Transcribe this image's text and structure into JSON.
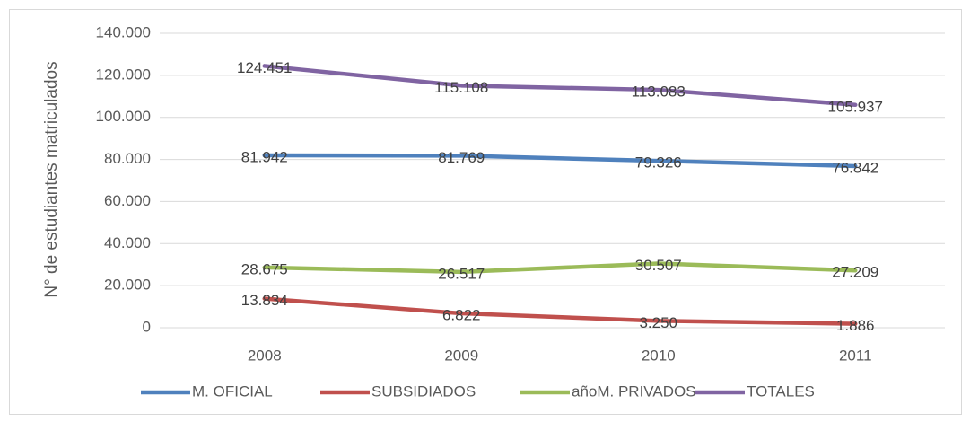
{
  "chart_data": {
    "type": "line",
    "y_label": "N° de estudiantes  matriculados",
    "categories": [
      "2008",
      "2009",
      "2010",
      "2011"
    ],
    "series": [
      {
        "name": "M. OFICIAL",
        "color": "#4f81bd",
        "values": [
          81942,
          81769,
          79326,
          76842
        ],
        "value_labels": [
          "81.942",
          "81.769",
          "79.326",
          "76.842"
        ]
      },
      {
        "name": "SUBSIDIADOS",
        "color": "#c0504d",
        "values": [
          13834,
          6822,
          3250,
          1886
        ],
        "value_labels": [
          "13.834",
          "6.822",
          "3.250",
          "1.886"
        ]
      },
      {
        "name": "añoM. PRIVADOS",
        "color": "#9bbb59",
        "values": [
          28675,
          26517,
          30507,
          27209
        ],
        "value_labels": [
          "28.675",
          "26.517",
          "30.507",
          "27.209"
        ]
      },
      {
        "name": "TOTALES",
        "color": "#8064a2",
        "values": [
          124451,
          115108,
          113083,
          105937
        ],
        "value_labels": [
          "124.451",
          "115.108",
          "113.083",
          "105.937"
        ]
      }
    ],
    "ylim": [
      0,
      140000
    ],
    "yticks": [
      0,
      {
        "value": 20000,
        "label": "20.000"
      },
      {
        "value": 40000,
        "label": "40.000"
      },
      {
        "value": 60000,
        "label": "60.000"
      },
      {
        "value": 80000,
        "label": "80.000"
      },
      {
        "value": 100000,
        "label": "100.000"
      },
      {
        "value": 120000,
        "label": "120.000"
      },
      {
        "value": 140000,
        "label": "140.000"
      }
    ],
    "grid": true,
    "legend": "bottom"
  }
}
